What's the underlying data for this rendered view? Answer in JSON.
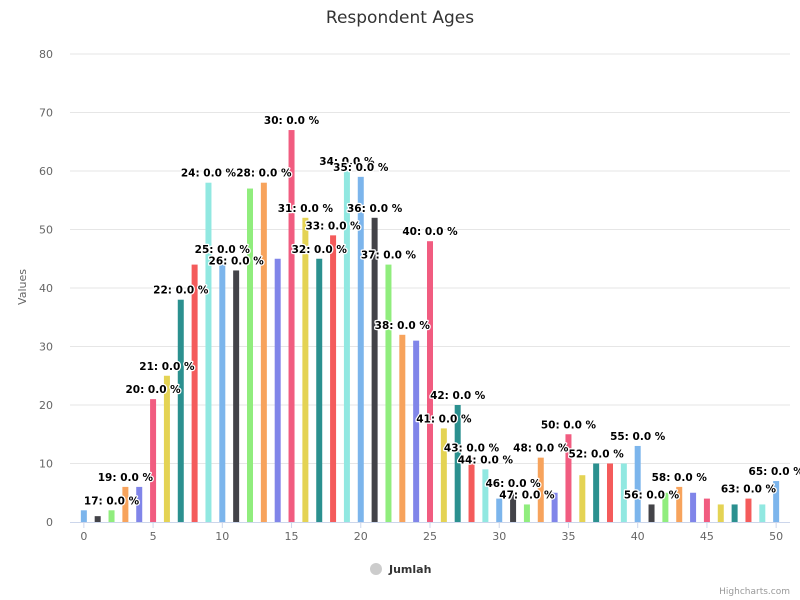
{
  "credits": "Highcharts.com",
  "colors": {
    "grid": "#e6e6e6",
    "axis_line": "#ccd6eb",
    "legend_symbol": "#cccccc",
    "palette": [
      "#7cb5ec",
      "#434348",
      "#90ed7d",
      "#f7a35c",
      "#8085e9",
      "#f15c80",
      "#e4d354",
      "#2b908f",
      "#f45b5b",
      "#91e8e1"
    ]
  },
  "chart_data": {
    "type": "bar",
    "title": "Respondent Ages",
    "ylabel": "Values",
    "xlabel": "",
    "xlim": [
      -1,
      51
    ],
    "ylim": [
      0,
      80
    ],
    "x_ticks": [
      "0",
      "5",
      "10",
      "15",
      "20",
      "25",
      "30",
      "35",
      "40",
      "45",
      "50"
    ],
    "y_ticks": [
      "0",
      "10",
      "20",
      "30",
      "40",
      "50",
      "60",
      "70",
      "80"
    ],
    "grid": true,
    "legend_position": "bottom-center",
    "legend": [
      {
        "name": "Jumlah"
      }
    ],
    "series": [
      {
        "name": "Jumlah",
        "points": [
          {
            "x": 0,
            "y": 2
          },
          {
            "x": 1,
            "y": 1
          },
          {
            "x": 2,
            "y": 2,
            "label": "17: 0.0 %"
          },
          {
            "x": 3,
            "y": 6,
            "label": "19: 0.0 %"
          },
          {
            "x": 4,
            "y": 6
          },
          {
            "x": 5,
            "y": 21,
            "label": "20: 0.0 %"
          },
          {
            "x": 6,
            "y": 25,
            "label": "21: 0.0 %"
          },
          {
            "x": 7,
            "y": 38,
            "label": "22: 0.0 %"
          },
          {
            "x": 8,
            "y": 44
          },
          {
            "x": 9,
            "y": 58,
            "label": "24: 0.0 %"
          },
          {
            "x": 10,
            "y": 45,
            "label": "25: 0.0 %"
          },
          {
            "x": 11,
            "y": 43,
            "label": "26: 0.0 %"
          },
          {
            "x": 12,
            "y": 57
          },
          {
            "x": 13,
            "y": 58,
            "label": "28: 0.0 %"
          },
          {
            "x": 14,
            "y": 45
          },
          {
            "x": 15,
            "y": 67,
            "label": "30: 0.0 %"
          },
          {
            "x": 16,
            "y": 52,
            "label": "31: 0.0 %"
          },
          {
            "x": 17,
            "y": 45,
            "label": "32: 0.0 %"
          },
          {
            "x": 18,
            "y": 49,
            "label": "33: 0.0 %"
          },
          {
            "x": 19,
            "y": 60,
            "label": "34: 0.0 %"
          },
          {
            "x": 20,
            "y": 59,
            "label": "35: 0.0 %"
          },
          {
            "x": 21,
            "y": 52,
            "label": "36: 0.0 %"
          },
          {
            "x": 22,
            "y": 44,
            "label": "37: 0.0 %"
          },
          {
            "x": 23,
            "y": 32,
            "label": "38: 0.0 %"
          },
          {
            "x": 24,
            "y": 31
          },
          {
            "x": 25,
            "y": 48,
            "label": "40: 0.0 %"
          },
          {
            "x": 26,
            "y": 16,
            "label": "41: 0.0 %"
          },
          {
            "x": 27,
            "y": 20,
            "label": "42: 0.0 %"
          },
          {
            "x": 28,
            "y": 11,
            "label": "43: 0.0 %"
          },
          {
            "x": 29,
            "y": 9,
            "label": "44: 0.0 %"
          },
          {
            "x": 30,
            "y": 4
          },
          {
            "x": 31,
            "y": 5,
            "label": "46: 0.0 %"
          },
          {
            "x": 32,
            "y": 3,
            "label": "47: 0.0 %"
          },
          {
            "x": 33,
            "y": 11,
            "label": "48: 0.0 %"
          },
          {
            "x": 34,
            "y": 5
          },
          {
            "x": 35,
            "y": 15,
            "label": "50: 0.0 %"
          },
          {
            "x": 36,
            "y": 8
          },
          {
            "x": 37,
            "y": 10,
            "label": "52: 0.0 %"
          },
          {
            "x": 38,
            "y": 10
          },
          {
            "x": 39,
            "y": 10
          },
          {
            "x": 40,
            "y": 13,
            "label": "55: 0.0 %"
          },
          {
            "x": 41,
            "y": 3,
            "label": "56: 0.0 %"
          },
          {
            "x": 42,
            "y": 5
          },
          {
            "x": 43,
            "y": 6,
            "label": "58: 0.0 %"
          },
          {
            "x": 44,
            "y": 5
          },
          {
            "x": 45,
            "y": 4
          },
          {
            "x": 46,
            "y": 3
          },
          {
            "x": 47,
            "y": 3
          },
          {
            "x": 48,
            "y": 4,
            "label": "63: 0.0 %"
          },
          {
            "x": 49,
            "y": 3
          },
          {
            "x": 50,
            "y": 7,
            "label": "65: 0.0 %"
          }
        ]
      }
    ]
  }
}
